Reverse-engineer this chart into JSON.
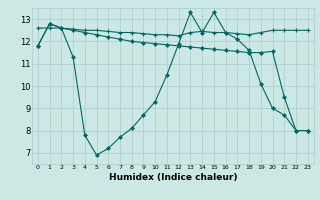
{
  "title": "",
  "xlabel": "Humidex (Indice chaleur)",
  "background_color": "#cce8e4",
  "grid_color": "#aacccc",
  "line_color": "#006666",
  "x_labels": [
    "0",
    "1",
    "2",
    "3",
    "4",
    "5",
    "6",
    "7",
    "8",
    "9",
    "10",
    "11",
    "12",
    "13",
    "14",
    "15",
    "16",
    "17",
    "18",
    "19",
    "20",
    "21",
    "22",
    "23"
  ],
  "ylim": [
    6.5,
    13.5
  ],
  "yticks": [
    7,
    8,
    9,
    10,
    11,
    12,
    13
  ],
  "series1_x": [
    0,
    1,
    2,
    3,
    4,
    5,
    6,
    7,
    8,
    9,
    10,
    11,
    12,
    13,
    14,
    15,
    16,
    17,
    18,
    19,
    20,
    21,
    22,
    23
  ],
  "series1_y": [
    11.8,
    12.8,
    12.6,
    11.3,
    7.8,
    6.9,
    7.2,
    7.7,
    8.1,
    8.7,
    9.3,
    10.5,
    11.9,
    13.3,
    12.4,
    13.3,
    12.4,
    12.1,
    11.6,
    10.1,
    9.0,
    8.7,
    8.0,
    8.0
  ],
  "series2_x": [
    0,
    1,
    2,
    3,
    4,
    5,
    6,
    7,
    8,
    9,
    10,
    11,
    12,
    13,
    14,
    15,
    16,
    17,
    18,
    19,
    20,
    21,
    22,
    23
  ],
  "series2_y": [
    12.6,
    12.6,
    12.6,
    12.55,
    12.5,
    12.5,
    12.45,
    12.4,
    12.4,
    12.35,
    12.3,
    12.3,
    12.25,
    12.4,
    12.45,
    12.4,
    12.4,
    12.35,
    12.3,
    12.4,
    12.5,
    12.5,
    12.5,
    12.5
  ],
  "series3_x": [
    0,
    1,
    2,
    3,
    4,
    5,
    6,
    7,
    8,
    9,
    10,
    11,
    12,
    13,
    14,
    15,
    16,
    17,
    18,
    19,
    20,
    21,
    22,
    23
  ],
  "series3_y": [
    11.8,
    12.8,
    12.6,
    12.5,
    12.4,
    12.3,
    12.2,
    12.1,
    12.0,
    11.95,
    11.9,
    11.85,
    11.8,
    11.75,
    11.7,
    11.65,
    11.6,
    11.55,
    11.5,
    11.5,
    11.55,
    9.5,
    8.0,
    8.0
  ]
}
